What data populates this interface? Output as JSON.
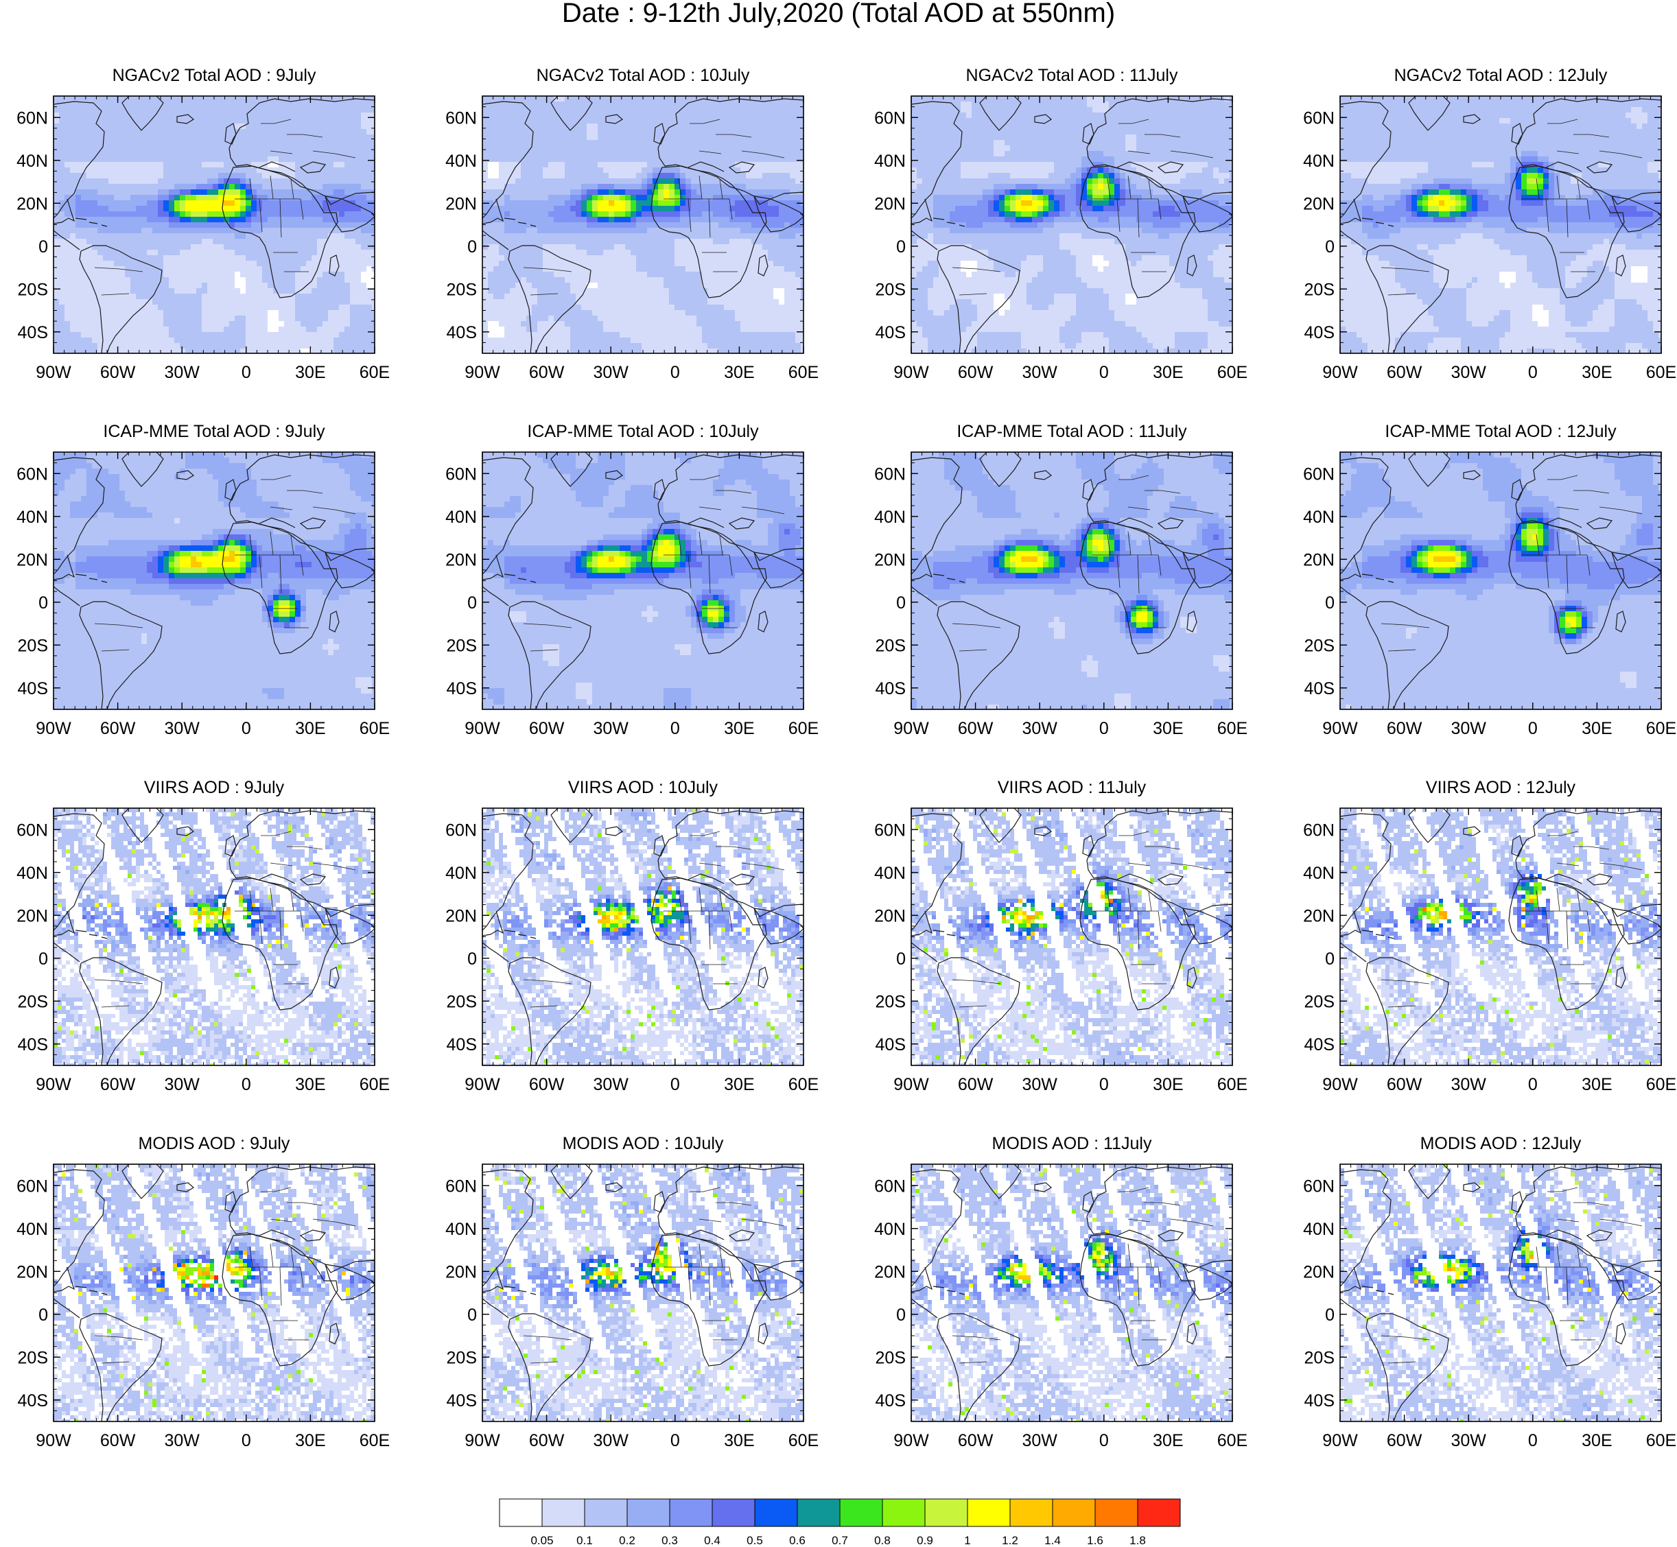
{
  "figure": {
    "title": "Date : 9-12th July,2020 (Total AOD at 550nm)"
  },
  "axes": {
    "lon_range": [
      -90,
      60
    ],
    "lat_range": [
      -50,
      70
    ],
    "x_ticks": [
      {
        "value": -90,
        "label": "90W"
      },
      {
        "value": -60,
        "label": "60W"
      },
      {
        "value": -30,
        "label": "30W"
      },
      {
        "value": 0,
        "label": "0"
      },
      {
        "value": 30,
        "label": "30E"
      },
      {
        "value": 60,
        "label": "60E"
      }
    ],
    "y_ticks": [
      {
        "value": 60,
        "label": "60N"
      },
      {
        "value": 40,
        "label": "40N"
      },
      {
        "value": 20,
        "label": "20N"
      },
      {
        "value": 0,
        "label": "0"
      },
      {
        "value": -20,
        "label": "20S"
      },
      {
        "value": -40,
        "label": "40S"
      }
    ]
  },
  "panels": [
    {
      "title": "NGACv2 Total AOD : 9July",
      "source": "NGACv2",
      "date": "9July"
    },
    {
      "title": "NGACv2 Total AOD : 10July",
      "source": "NGACv2",
      "date": "10July"
    },
    {
      "title": "NGACv2 Total AOD : 11July",
      "source": "NGACv2",
      "date": "11July"
    },
    {
      "title": "NGACv2 Total AOD : 12July",
      "source": "NGACv2",
      "date": "12July"
    },
    {
      "title": "ICAP-MME Total AOD : 9July",
      "source": "ICAP-MME",
      "date": "9July"
    },
    {
      "title": "ICAP-MME Total AOD : 10July",
      "source": "ICAP-MME",
      "date": "10July"
    },
    {
      "title": "ICAP-MME Total AOD : 11July",
      "source": "ICAP-MME",
      "date": "11July"
    },
    {
      "title": "ICAP-MME Total AOD : 12July",
      "source": "ICAP-MME",
      "date": "12July"
    },
    {
      "title": "VIIRS AOD : 9July",
      "source": "VIIRS",
      "date": "9July"
    },
    {
      "title": "VIIRS AOD : 10July",
      "source": "VIIRS",
      "date": "10July"
    },
    {
      "title": "VIIRS AOD : 11July",
      "source": "VIIRS",
      "date": "11July"
    },
    {
      "title": "VIIRS AOD : 12July",
      "source": "VIIRS",
      "date": "12July"
    },
    {
      "title": "MODIS AOD : 9July",
      "source": "MODIS",
      "date": "9July"
    },
    {
      "title": "MODIS AOD : 10July",
      "source": "MODIS",
      "date": "10July"
    },
    {
      "title": "MODIS AOD : 11July",
      "source": "MODIS",
      "date": "11July"
    },
    {
      "title": "MODIS AOD : 12July",
      "source": "MODIS",
      "date": "12July"
    }
  ],
  "colorbar": {
    "colors": [
      "#ffffff",
      "#d5dcfa",
      "#b4c3f5",
      "#97aef5",
      "#7f94f5",
      "#6470ee",
      "#0a5af5",
      "#0f9696",
      "#3ce61e",
      "#8cf50f",
      "#c8f53c",
      "#ffff00",
      "#ffc800",
      "#ffaa00",
      "#ff7800",
      "#ff2814"
    ],
    "labels": [
      "0.05",
      "0.1",
      "0.2",
      "0.3",
      "0.4",
      "0.5",
      "0.6",
      "0.7",
      "0.8",
      "0.9",
      "1",
      "1.2",
      "1.4",
      "1.6",
      "1.8"
    ]
  }
}
